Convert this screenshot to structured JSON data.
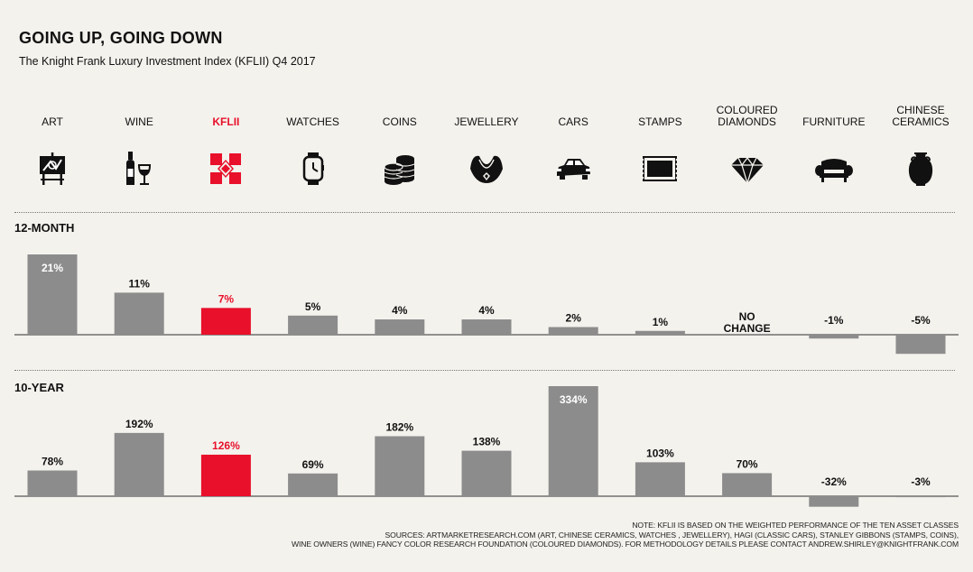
{
  "title": "GOING UP, GOING DOWN",
  "subtitle": "The Knight Frank Luxury Investment Index (KFLII) Q4 2017",
  "highlight_color": "#e8102a",
  "bar_color": "#8c8c8c",
  "categories": [
    {
      "label": "ART",
      "icon": "easel-painting-icon"
    },
    {
      "label": "WINE",
      "icon": "wine-bottle-glass-icon"
    },
    {
      "label": "KFLII",
      "icon": "kflii-logo-icon"
    },
    {
      "label": "WATCHES",
      "icon": "watch-icon"
    },
    {
      "label": "COINS",
      "icon": "coin-stack-icon"
    },
    {
      "label": "JEWELLERY",
      "icon": "necklace-icon"
    },
    {
      "label": "CARS",
      "icon": "car-icon"
    },
    {
      "label": "STAMPS",
      "icon": "stamp-icon"
    },
    {
      "label": "COLOURED DIAMONDS",
      "icon": "diamond-icon"
    },
    {
      "label": "FURNITURE",
      "icon": "sofa-icon"
    },
    {
      "label": "CHINESE CERAMICS",
      "icon": "vase-icon"
    }
  ],
  "chart_data": [
    {
      "type": "bar",
      "title": "12-MONTH",
      "categories": [
        "ART",
        "WINE",
        "KFLII",
        "WATCHES",
        "COINS",
        "JEWELLERY",
        "CARS",
        "STAMPS",
        "COLOURED DIAMONDS",
        "FURNITURE",
        "CHINESE CERAMICS"
      ],
      "values": [
        21,
        11,
        7,
        5,
        4,
        4,
        2,
        1,
        0,
        -1,
        -5
      ],
      "labels": [
        "21%",
        "11%",
        "7%",
        "5%",
        "4%",
        "4%",
        "2%",
        "1%",
        "NO CHANGE",
        "-1%",
        "-5%"
      ],
      "highlight": "KFLII"
    },
    {
      "type": "bar",
      "title": "10-YEAR",
      "categories": [
        "ART",
        "WINE",
        "KFLII",
        "WATCHES",
        "COINS",
        "JEWELLERY",
        "CARS",
        "STAMPS",
        "COLOURED DIAMONDS",
        "FURNITURE",
        "CHINESE CERAMICS"
      ],
      "values": [
        78,
        192,
        126,
        69,
        182,
        138,
        334,
        103,
        70,
        -32,
        -3
      ],
      "labels": [
        "78%",
        "192%",
        "126%",
        "69%",
        "182%",
        "138%",
        "334%",
        "103%",
        "70%",
        "-32%",
        "-3%"
      ],
      "highlight": "KFLII"
    }
  ],
  "notes": [
    "NOTE: KFLII IS BASED ON THE WEIGHTED PERFORMANCE OF THE TEN ASSET CLASSES",
    "SOURCES: ARTMARKETRESEARCH.COM (ART, CHINESE CERAMICS, WATCHES , JEWELLERY), HAGI (CLASSIC CARS), STANLEY GIBBONS (STAMPS, COINS),",
    "WINE OWNERS (WINE) FANCY COLOR RESEARCH FOUNDATION (COLOURED DIAMONDS). FOR METHODOLOGY DETAILS PLEASE CONTACT ANDREW.SHIRLEY@KNIGHTFRANK.COM"
  ]
}
